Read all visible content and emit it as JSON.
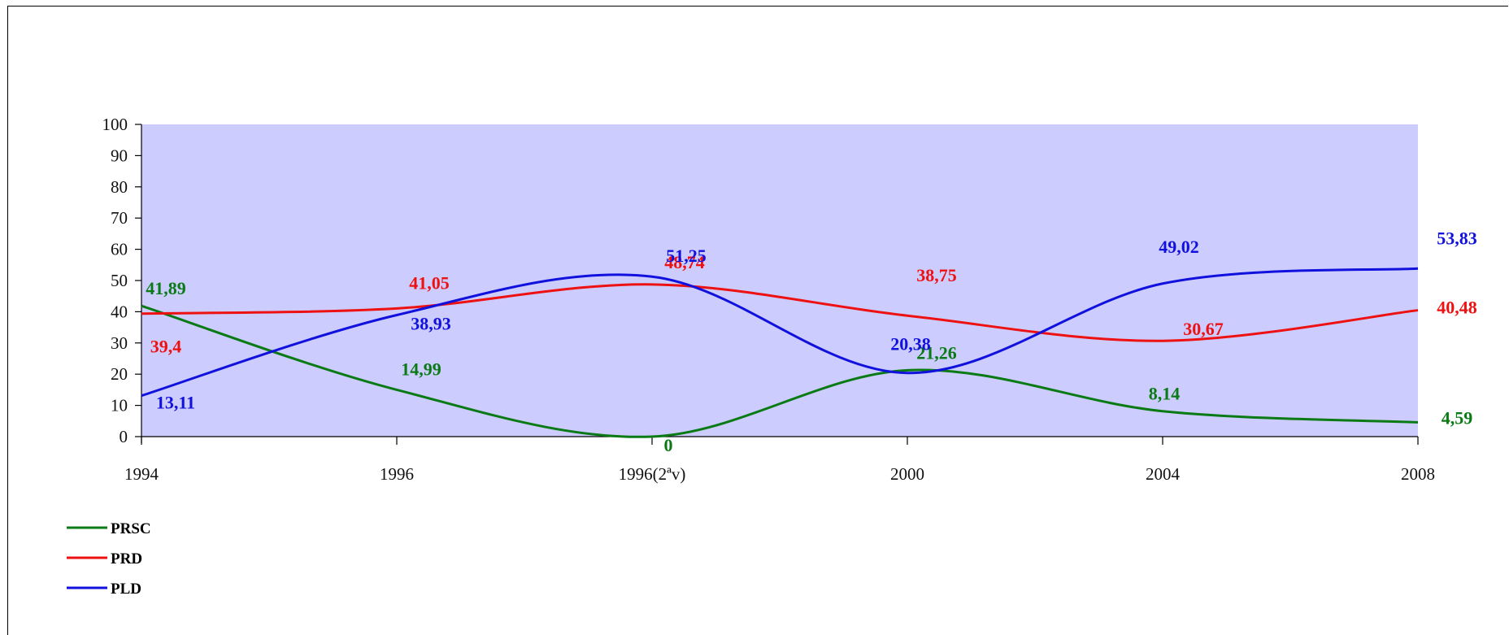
{
  "chart_data": {
    "type": "line",
    "title": "",
    "xlabel": "",
    "ylabel": "",
    "categories": [
      "1994",
      "1996",
      "1996(2ªv)",
      "2000",
      "2004",
      "2008"
    ],
    "ylim": [
      0,
      100
    ],
    "yticks": [
      0,
      10,
      20,
      30,
      40,
      50,
      60,
      70,
      80,
      90,
      100
    ],
    "grid": false,
    "plot_background": "#ccccff",
    "legend_position": "bottom-left",
    "series": [
      {
        "name": "PRSC",
        "color": "#0a7a14",
        "values": [
          41.89,
          14.99,
          0,
          21.26,
          8.14,
          4.59
        ],
        "labels": [
          "41,89",
          "14,99",
          "0",
          "21,26",
          "8,14",
          "4,59"
        ]
      },
      {
        "name": "PRD",
        "color": "#ee1111",
        "values": [
          39.4,
          41.05,
          48.74,
          38.75,
          30.67,
          40.48
        ],
        "labels": [
          "39,4",
          "41,05",
          "48,74",
          "38,75",
          "30,67",
          "40,48"
        ]
      },
      {
        "name": "PLD",
        "color": "#1111dd",
        "values": [
          13.11,
          38.93,
          51.25,
          20.38,
          49.02,
          53.83
        ],
        "labels": [
          "13,11",
          "38,93",
          "51,25",
          "20,38",
          "49,02",
          "53,83"
        ]
      }
    ]
  }
}
